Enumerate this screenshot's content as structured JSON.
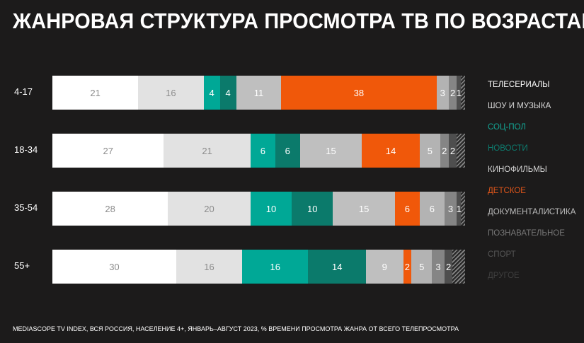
{
  "chart_data": {
    "type": "bar",
    "stacked": true,
    "orientation": "horizontal",
    "title": "ЖАНРОВАЯ СТРУКТУРА ПРОСМОТРА ТВ ПО ВОЗРАСТАМ",
    "categories": [
      "4-17",
      "18-34",
      "35-54",
      "55+"
    ],
    "series": [
      {
        "name": "ТЕЛЕСЕРИАЛЫ",
        "color": "#ffffff",
        "label_color": "#8c8c8c",
        "values": [
          21,
          27,
          28,
          30
        ]
      },
      {
        "name": "ШОУ И МУЗЫКА",
        "color": "#e2e2e2",
        "label_color": "#8c8c8c",
        "values": [
          16,
          21,
          20,
          16
        ]
      },
      {
        "name": "СОЦ-ПОЛ",
        "color": "#00a896",
        "label_color": "#ffffff",
        "values": [
          4,
          6,
          10,
          16
        ]
      },
      {
        "name": "НОВОСТИ",
        "color": "#0b7a6b",
        "label_color": "#ffffff",
        "values": [
          4,
          6,
          10,
          14
        ]
      },
      {
        "name": "КИНОФИЛЬМЫ",
        "color": "#bfbfbf",
        "label_color": "#ffffff",
        "values": [
          11,
          15,
          15,
          9
        ]
      },
      {
        "name": "ДЕТСКОЕ",
        "color": "#f0580a",
        "label_color": "#ffffff",
        "values": [
          38,
          14,
          6,
          2
        ]
      },
      {
        "name": "ДОКУМЕНТАЛИСТИКА",
        "color": "#b3b3b3",
        "label_color": "#ffffff",
        "values": [
          3,
          5,
          6,
          5
        ]
      },
      {
        "name": "ПОЗНАВАТЕЛЬНОЕ",
        "color": "#858585",
        "label_color": "#ffffff",
        "values": [
          2,
          2,
          3,
          3
        ]
      },
      {
        "name": "СПОРТ",
        "color": "#4e4e4e",
        "label_color": "#ffffff",
        "values": [
          1,
          2,
          1,
          2
        ]
      },
      {
        "name": "ДРУГОЕ",
        "color": "hatch",
        "label_color": "#ffffff",
        "values": [
          1,
          2,
          1,
          3
        ],
        "labels_hidden": true
      }
    ],
    "legend_colors": [
      "#ffffff",
      "#d9d9d9",
      "#13a594",
      "#0d7d70",
      "#d0d0d0",
      "#e0561a",
      "#bdbdbd",
      "#777777",
      "#555555",
      "#3e3e3e"
    ],
    "legend_position": "right",
    "xlim": [
      0,
      100
    ],
    "grid": false
  },
  "footnote": "MEDIASCOPE TV INDEX, ВСЯ РОССИЯ, НАСЕЛЕНИЕ 4+, ЯНВАРЬ–АВГУСТ 2023, % ВРЕМЕНИ ПРОСМОТРА ЖАНРА ОТ ВСЕГО ТЕЛЕПРОСМОТРА"
}
